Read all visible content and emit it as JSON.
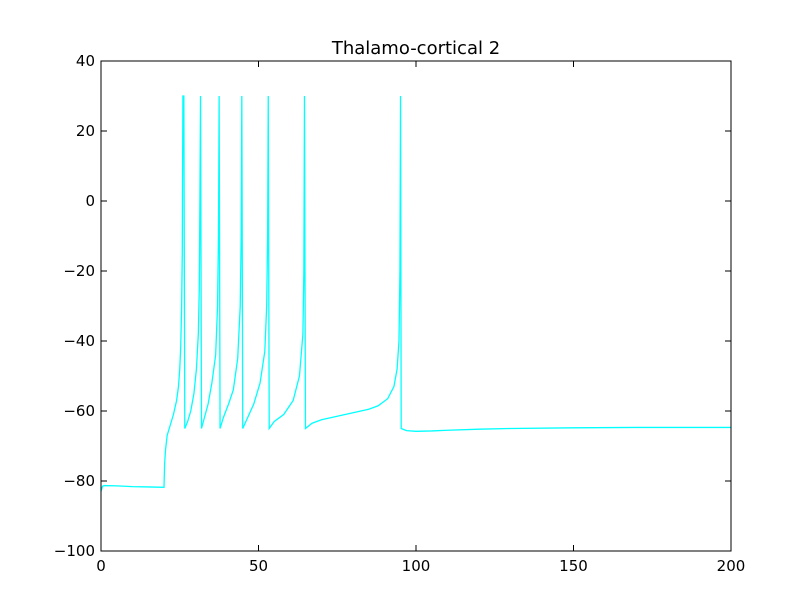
{
  "chart_data": {
    "type": "line",
    "title": "Thalamo-cortical 2",
    "xlabel": "",
    "ylabel": "",
    "xlim": [
      0,
      200
    ],
    "ylim": [
      -100,
      40
    ],
    "xticks": [
      0,
      50,
      100,
      150,
      200
    ],
    "yticks": [
      -100,
      -80,
      -60,
      -40,
      -20,
      0,
      20,
      40
    ],
    "xtick_labels": [
      "0",
      "50",
      "100",
      "150",
      "200"
    ],
    "ytick_labels": [
      "−100",
      "−80",
      "−60",
      "−40",
      "−20",
      "0",
      "20",
      "40"
    ],
    "grid": false,
    "legend": "none",
    "series": [
      {
        "color": "#00ffff",
        "x": [
          0,
          0.5,
          1,
          5,
          10,
          15,
          20,
          20.2,
          20.5,
          21,
          22,
          23,
          24,
          24.6,
          25,
          25.3,
          25.6,
          25.8,
          26,
          26.3,
          26.6,
          27.5,
          28.5,
          29.5,
          30.3,
          30.9,
          31.2,
          31.4,
          31.6,
          31.9,
          32.8,
          34,
          35.2,
          36.4,
          37.0,
          37.3,
          37.5,
          37.8,
          38.8,
          40.5,
          42,
          43.4,
          44.2,
          44.5,
          44.7,
          45.0,
          46.5,
          48.5,
          50.5,
          52,
          52.6,
          52.9,
          53.1,
          53.4,
          55,
          58,
          61,
          63,
          64.1,
          64.4,
          64.6,
          64.9,
          67,
          70,
          75,
          80,
          85,
          88,
          91,
          93,
          94,
          94.6,
          94.9,
          95.1,
          95.3,
          97,
          100,
          105,
          110,
          120,
          130,
          150,
          170,
          200
        ],
        "y": [
          -83,
          -81.5,
          -81.3,
          -81.4,
          -81.6,
          -81.7,
          -81.8,
          -75,
          -71,
          -67,
          -64,
          -61,
          -57,
          -53,
          -48,
          -42,
          -30,
          -15,
          30,
          30,
          -65,
          -63,
          -60,
          -55,
          -48,
          -38,
          -25,
          0,
          30,
          -65,
          -62,
          -58,
          -52,
          -44,
          -30,
          -10,
          30,
          -65,
          -62,
          -58,
          -54,
          -45,
          -30,
          -10,
          30,
          -65,
          -62,
          -58,
          -52,
          -43,
          -30,
          -10,
          30,
          -65,
          -63,
          -61,
          -57,
          -50,
          -38,
          -20,
          30,
          -65,
          -63.5,
          -62.5,
          -61.5,
          -60.5,
          -59.5,
          -58.5,
          -56.5,
          -53,
          -48,
          -40,
          -20,
          30,
          -65,
          -65.6,
          -65.8,
          -65.7,
          -65.5,
          -65.2,
          -65,
          -64.8,
          -64.7,
          -64.7
        ]
      }
    ]
  }
}
